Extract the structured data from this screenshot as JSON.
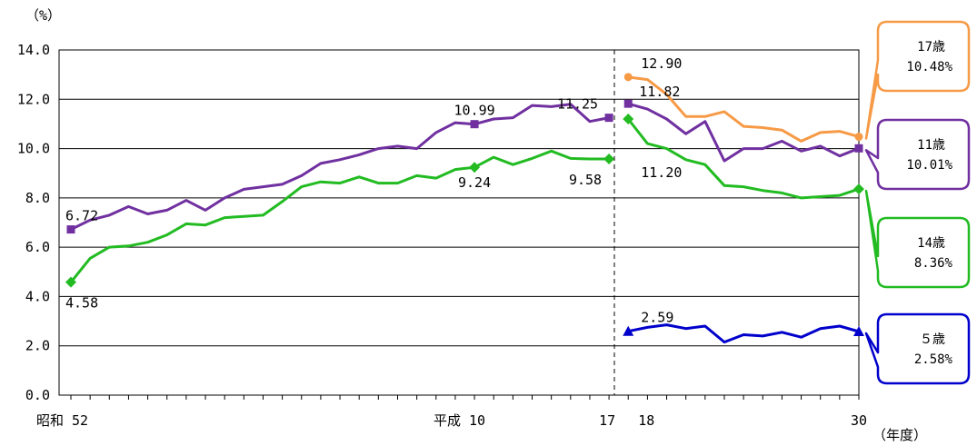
{
  "chart_data": {
    "type": "line",
    "y_unit_label": "（%）",
    "x_unit_label": "（年度）",
    "ylim": [
      0,
      14
    ],
    "yticks": [
      "0.0",
      "2.0",
      "4.0",
      "6.0",
      "8.0",
      "10.0",
      "12.0",
      "14.0"
    ],
    "x_tick_labels": [
      {
        "label": "昭和 52",
        "year": 1977
      },
      {
        "label": "平成 10",
        "year": 1998
      },
      {
        "label": "17",
        "year": 2005
      },
      {
        "label": "18",
        "year": 2006
      },
      {
        "label": "30",
        "year": 2018
      }
    ],
    "grid": true,
    "series": [
      {
        "name": "11歳",
        "color": "#7030a0",
        "marker": "square",
        "segments": [
          {
            "x": [
              1977,
              1978,
              1979,
              1980,
              1981,
              1982,
              1983,
              1984,
              1985,
              1986,
              1987,
              1988,
              1989,
              1990,
              1991,
              1992,
              1993,
              1994,
              1995,
              1996,
              1997,
              1998,
              1999,
              2000,
              2001,
              2002,
              2003,
              2004,
              2005
            ],
            "y": [
              6.72,
              7.1,
              7.3,
              7.65,
              7.35,
              7.5,
              7.9,
              7.5,
              8.0,
              8.35,
              8.45,
              8.55,
              8.9,
              9.4,
              9.55,
              9.75,
              10.0,
              10.1,
              10.0,
              10.65,
              11.05,
              10.99,
              11.2,
              11.25,
              11.75,
              11.7,
              11.8,
              11.1,
              11.25
            ]
          },
          {
            "x": [
              2006,
              2007,
              2008,
              2009,
              2010,
              2011,
              2012,
              2013,
              2014,
              2015,
              2016,
              2017,
              2018
            ],
            "y": [
              11.82,
              11.6,
              11.2,
              10.6,
              11.1,
              9.5,
              10.0,
              10.0,
              10.3,
              9.9,
              10.1,
              9.7,
              10.01
            ]
          }
        ]
      },
      {
        "name": "14歳",
        "color": "#22bb22",
        "marker": "diamond",
        "segments": [
          {
            "x": [
              1977,
              1978,
              1979,
              1980,
              1981,
              1982,
              1983,
              1984,
              1985,
              1986,
              1987,
              1988,
              1989,
              1990,
              1991,
              1992,
              1993,
              1994,
              1995,
              1996,
              1997,
              1998,
              1999,
              2000,
              2001,
              2002,
              2003,
              2004,
              2005
            ],
            "y": [
              4.58,
              5.55,
              6.0,
              6.05,
              6.2,
              6.5,
              6.95,
              6.9,
              7.2,
              7.25,
              7.3,
              7.85,
              8.45,
              8.65,
              8.6,
              8.85,
              8.6,
              8.6,
              8.9,
              8.8,
              9.15,
              9.24,
              9.65,
              9.35,
              9.6,
              9.9,
              9.6,
              9.58,
              9.58
            ]
          },
          {
            "x": [
              2006,
              2007,
              2008,
              2009,
              2010,
              2011,
              2012,
              2013,
              2014,
              2015,
              2016,
              2017,
              2018
            ],
            "y": [
              11.2,
              10.2,
              10.0,
              9.55,
              9.35,
              8.5,
              8.45,
              8.3,
              8.2,
              8.0,
              8.05,
              8.1,
              8.36
            ]
          }
        ]
      },
      {
        "name": "17歳",
        "color": "#f79a46",
        "marker": "circle",
        "segments": [
          {
            "x": [
              2006,
              2007,
              2008,
              2009,
              2010,
              2011,
              2012,
              2013,
              2014,
              2015,
              2016,
              2017,
              2018
            ],
            "y": [
              12.9,
              12.8,
              12.2,
              11.3,
              11.3,
              11.5,
              10.9,
              10.85,
              10.75,
              10.3,
              10.65,
              10.7,
              10.48
            ]
          }
        ]
      },
      {
        "name": "５歳",
        "color": "#0000cc",
        "marker": "triangle",
        "segments": [
          {
            "x": [
              2006,
              2007,
              2008,
              2009,
              2010,
              2011,
              2012,
              2013,
              2014,
              2015,
              2016,
              2017,
              2018
            ],
            "y": [
              2.59,
              2.75,
              2.85,
              2.7,
              2.8,
              2.15,
              2.45,
              2.4,
              2.55,
              2.35,
              2.7,
              2.8,
              2.58
            ]
          }
        ]
      }
    ],
    "data_labels": [
      {
        "text": "6.72",
        "series": "11歳",
        "x": 1977,
        "y": 6.72,
        "pos": "above"
      },
      {
        "text": "4.58",
        "series": "14歳",
        "x": 1977,
        "y": 4.58,
        "pos": "below"
      },
      {
        "text": "10.99",
        "series": "11歳",
        "x": 1998,
        "y": 10.99,
        "pos": "above"
      },
      {
        "text": "9.24",
        "series": "14歳",
        "x": 1998,
        "y": 9.24,
        "pos": "below"
      },
      {
        "text": "11.25",
        "series": "11歳",
        "x": 2005,
        "y": 11.25,
        "pos": "above-left"
      },
      {
        "text": "9.58",
        "series": "14歳",
        "x": 2005,
        "y": 9.58,
        "pos": "below-left"
      },
      {
        "text": "12.90",
        "series": "17歳",
        "x": 2006,
        "y": 12.9,
        "pos": "above-right"
      },
      {
        "text": "11.82",
        "series": "11歳",
        "x": 2006,
        "y": 11.82,
        "pos": "right"
      },
      {
        "text": "11.20",
        "series": "14歳",
        "x": 2006,
        "y": 11.2,
        "pos": "below-right"
      },
      {
        "text": "2.59",
        "series": "５歳",
        "x": 2006,
        "y": 2.59,
        "pos": "above-right"
      }
    ],
    "callouts": [
      {
        "series": "17歳",
        "name": "17歳",
        "value": "10.48%",
        "color": "#f79a46"
      },
      {
        "series": "11歳",
        "name": "11歳",
        "value": "10.01%",
        "color": "#7030a0"
      },
      {
        "series": "14歳",
        "name": "14歳",
        "value": "8.36%",
        "color": "#22bb22"
      },
      {
        "series": "５歳",
        "name": "５歳",
        "value": "2.58%",
        "color": "#0000cc"
      }
    ]
  }
}
